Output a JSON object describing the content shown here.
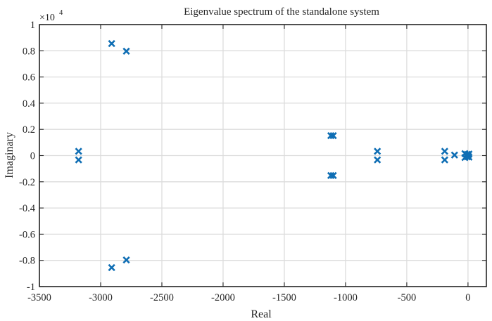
{
  "chart_data": {
    "type": "scatter",
    "title": "Eigenvalue spectrum of the standalone system",
    "xlabel": "Real",
    "ylabel": "Imaginary",
    "y_exponent_label": "×10",
    "y_exponent_power": "4",
    "xlim": [
      -3500,
      150
    ],
    "ylim": [
      -1,
      1
    ],
    "grid": true,
    "marker": "x",
    "marker_color": "#0f6eb4",
    "x_ticks": [
      -3500,
      -3000,
      -2500,
      -2000,
      -1500,
      -1000,
      -500,
      0
    ],
    "x_tick_labels": [
      "-3500",
      "-3000",
      "-2500",
      "-2000",
      "-1500",
      "-1000",
      "-500",
      "0"
    ],
    "y_ticks": [
      -1,
      -0.8,
      -0.6,
      -0.4,
      -0.2,
      0,
      0.2,
      0.4,
      0.6,
      0.8,
      1
    ],
    "y_tick_labels": [
      "-1",
      "-0.8",
      "-0.6",
      "-0.4",
      "-0.2",
      "0",
      "0.2",
      "0.4",
      "0.6",
      "0.8",
      "1"
    ],
    "points": [
      {
        "x": -2910,
        "y": 0.855
      },
      {
        "x": -2910,
        "y": -0.855
      },
      {
        "x": -2790,
        "y": 0.797
      },
      {
        "x": -2790,
        "y": -0.797
      },
      {
        "x": -3180,
        "y": 0.033
      },
      {
        "x": -3180,
        "y": -0.033
      },
      {
        "x": -1120,
        "y": 0.152
      },
      {
        "x": -1100,
        "y": 0.152
      },
      {
        "x": -1120,
        "y": -0.152
      },
      {
        "x": -1100,
        "y": -0.152
      },
      {
        "x": -740,
        "y": 0.033
      },
      {
        "x": -740,
        "y": -0.033
      },
      {
        "x": -190,
        "y": 0.033
      },
      {
        "x": -190,
        "y": -0.033
      },
      {
        "x": -110,
        "y": 0.004
      },
      {
        "x": -25,
        "y": 0.015
      },
      {
        "x": -25,
        "y": -0.015
      },
      {
        "x": -5,
        "y": 0.01
      },
      {
        "x": -5,
        "y": -0.01
      },
      {
        "x": 8,
        "y": 0.012
      },
      {
        "x": 8,
        "y": -0.012
      },
      {
        "x": 0,
        "y": 0.0
      }
    ]
  }
}
